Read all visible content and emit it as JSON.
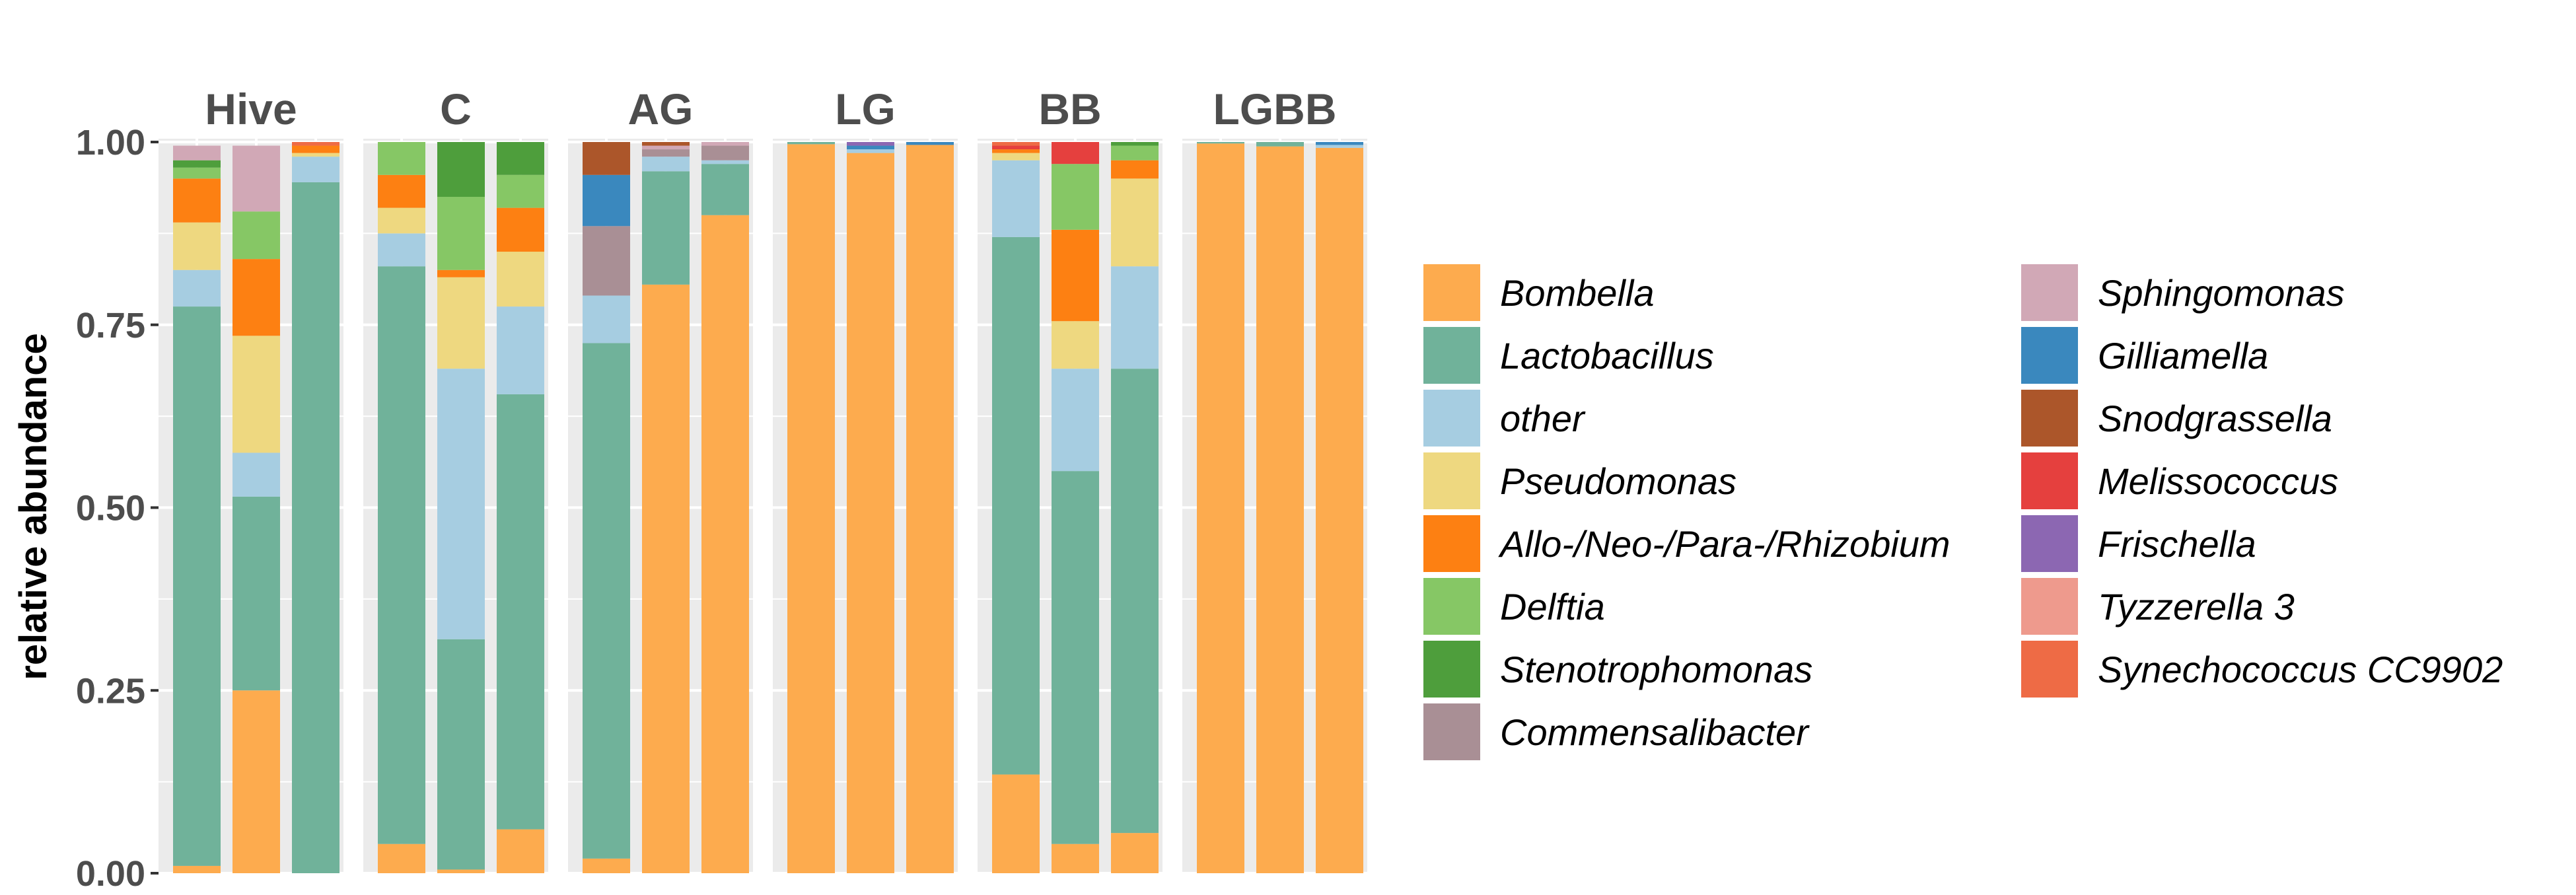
{
  "chart_data": {
    "type": "bar",
    "stacked": true,
    "faceted": true,
    "ylabel": "relative abundance",
    "xlabel": "",
    "ylim": [
      0,
      1
    ],
    "yticks": [
      "0.00",
      "0.25",
      "0.50",
      "0.75",
      "1.00"
    ],
    "grid": true,
    "legend_position": "right",
    "stack_order": [
      "Bombella",
      "Lactobacillus",
      "other",
      "Pseudomonas",
      "Allo-/Neo-/Para-/Rhizobium",
      "Delftia",
      "Stenotrophomonas",
      "Commensalibacter",
      "Sphingomonas",
      "Gilliamella",
      "Snodgrassella",
      "Melissococcus",
      "Frischella",
      "Tyzzerella 3",
      "Synechococcus CC9902"
    ],
    "colors": {
      "Bombella": "#fdab4e",
      "Lactobacillus": "#70b29a",
      "other": "#a6cde1",
      "Pseudomonas": "#eed880",
      "Allo-/Neo-/Para-/Rhizobium": "#fd8012",
      "Delftia": "#86c765",
      "Stenotrophomonas": "#4e9e3c",
      "Commensalibacter": "#a98f95",
      "Sphingomonas": "#d1a8b6",
      "Gilliamella": "#3a88be",
      "Snodgrassella": "#ac562a",
      "Melissococcus": "#e5403e",
      "Frischella": "#8c67b2",
      "Tyzzerella 3": "#ee9a8d",
      "Synechococcus CC9902": "#ee6b45"
    },
    "legend": {
      "columns": [
        [
          "Bombella",
          "Lactobacillus",
          "other",
          "Pseudomonas",
          "Allo-/Neo-/Para-/Rhizobium",
          "Delftia",
          "Stenotrophomonas",
          "Commensalibacter"
        ],
        [
          "Sphingomonas",
          "Gilliamella",
          "Snodgrassella",
          "Melissococcus",
          "Frischella",
          "Tyzzerella 3",
          "Synechococcus CC9902"
        ]
      ]
    },
    "facets": [
      {
        "name": "Hive",
        "bars": [
          {
            "Sphingomonas": 0.02,
            "Stenotrophomonas": 0.01,
            "Delftia": 0.015,
            "Allo-/Neo-/Para-/Rhizobium": 0.06,
            "Pseudomonas": 0.065,
            "other": 0.05,
            "Lactobacillus": 0.765,
            "Bombella": 0.01
          },
          {
            "Sphingomonas": 0.09,
            "Delftia": 0.065,
            "Allo-/Neo-/Para-/Rhizobium": 0.105,
            "Pseudomonas": 0.16,
            "other": 0.06,
            "Lactobacillus": 0.265,
            "Bombella": 0.25
          },
          {
            "Synechococcus CC9902": 0.005,
            "Allo-/Neo-/Para-/Rhizobium": 0.01,
            "Pseudomonas": 0.005,
            "other": 0.035,
            "Lactobacillus": 0.945
          }
        ]
      },
      {
        "name": "C",
        "bars": [
          {
            "Delftia": 0.045,
            "Allo-/Neo-/Para-/Rhizobium": 0.045,
            "Pseudomonas": 0.035,
            "other": 0.045,
            "Lactobacillus": 0.79,
            "Bombella": 0.04
          },
          {
            "Stenotrophomonas": 0.075,
            "Delftia": 0.1,
            "Allo-/Neo-/Para-/Rhizobium": 0.01,
            "Pseudomonas": 0.125,
            "other": 0.37,
            "Lactobacillus": 0.315,
            "Bombella": 0.005
          },
          {
            "Stenotrophomonas": 0.045,
            "Delftia": 0.045,
            "Allo-/Neo-/Para-/Rhizobium": 0.06,
            "Pseudomonas": 0.075,
            "other": 0.12,
            "Lactobacillus": 0.595,
            "Bombella": 0.06
          }
        ]
      },
      {
        "name": "AG",
        "bars": [
          {
            "Snodgrassella": 0.045,
            "Gilliamella": 0.07,
            "Commensalibacter": 0.095,
            "other": 0.065,
            "Lactobacillus": 0.705,
            "Bombella": 0.02
          },
          {
            "Snodgrassella": 0.005,
            "Commensalibacter": 0.01,
            "Sphingomonas": 0.005,
            "other": 0.02,
            "Lactobacillus": 0.155,
            "Bombella": 0.805
          },
          {
            "Commensalibacter": 0.02,
            "Sphingomonas": 0.005,
            "other": 0.005,
            "Lactobacillus": 0.07,
            "Bombella": 0.9
          }
        ]
      },
      {
        "name": "LG",
        "bars": [
          {
            "Lactobacillus": 0.003,
            "Bombella": 0.997
          },
          {
            "Frischella": 0.005,
            "Gilliamella": 0.005,
            "other": 0.005,
            "Bombella": 0.985
          },
          {
            "Gilliamella": 0.004,
            "Bombella": 0.996
          }
        ]
      },
      {
        "name": "BB",
        "bars": [
          {
            "Melissococcus": 0.005,
            "Synechococcus CC9902": 0.005,
            "Allo-/Neo-/Para-/Rhizobium": 0.005,
            "Pseudomonas": 0.01,
            "other": 0.105,
            "Lactobacillus": 0.735,
            "Bombella": 0.135
          },
          {
            "Melissococcus": 0.03,
            "Delftia": 0.09,
            "Allo-/Neo-/Para-/Rhizobium": 0.125,
            "Pseudomonas": 0.065,
            "other": 0.14,
            "Lactobacillus": 0.51,
            "Bombella": 0.04
          },
          {
            "Stenotrophomonas": 0.005,
            "Delftia": 0.02,
            "Allo-/Neo-/Para-/Rhizobium": 0.025,
            "Pseudomonas": 0.12,
            "other": 0.14,
            "Lactobacillus": 0.635,
            "Bombella": 0.055
          }
        ]
      },
      {
        "name": "LGBB",
        "bars": [
          {
            "Lactobacillus": 0.002,
            "Bombella": 0.998
          },
          {
            "Lactobacillus": 0.006,
            "Bombella": 0.994
          },
          {
            "Gilliamella": 0.004,
            "other": 0.004,
            "Bombella": 0.992
          }
        ]
      }
    ]
  }
}
